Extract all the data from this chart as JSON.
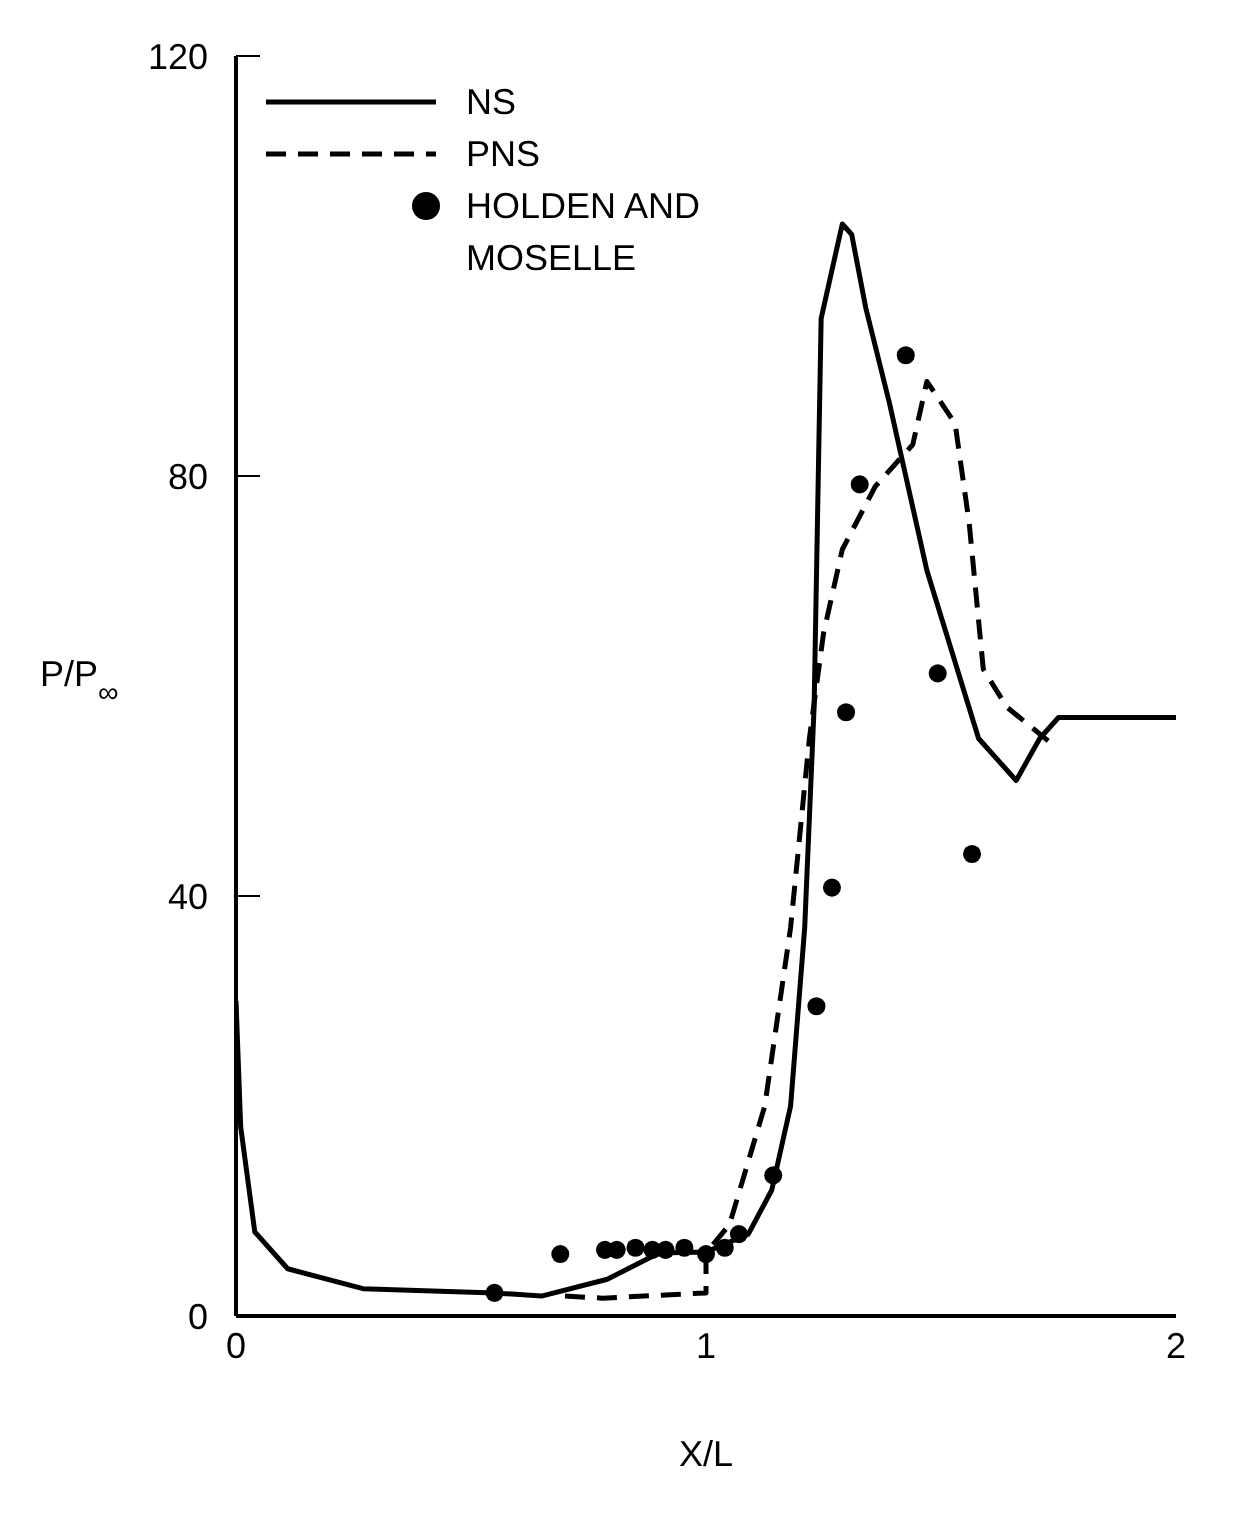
{
  "chart_data": {
    "type": "line",
    "xlabel": "X/L",
    "ylabel": "P/P$_{∞}$",
    "xlim": [
      0,
      2
    ],
    "ylim": [
      0,
      120
    ],
    "xticks": [
      0,
      1,
      2
    ],
    "yticks": [
      0,
      40,
      80,
      120
    ],
    "grid": false,
    "legend": "top left",
    "series": [
      {
        "name": "NS",
        "type": "line",
        "color": "#000000",
        "line_style": "solid",
        "marker": "none",
        "x": [
          0,
          0.01,
          0.04,
          0.11,
          0.27,
          0.55,
          0.65,
          0.79,
          0.9,
          1.0,
          1.09,
          1.14,
          1.18,
          1.21,
          1.23,
          1.245,
          1.29,
          1.31,
          1.34,
          1.39,
          1.47,
          1.58,
          1.66,
          1.71,
          1.75,
          2.0
        ],
        "values": [
          30,
          18,
          8,
          4.5,
          2.6,
          2.2,
          1.9,
          3.5,
          6,
          6.1,
          7.8,
          12,
          20,
          37,
          58,
          95,
          104,
          103,
          96,
          87,
          71,
          55,
          51,
          55,
          57,
          57
        ]
      },
      {
        "name": "PNS",
        "type": "line",
        "color": "#000000",
        "line_style": "dashed",
        "marker": "none",
        "x": [
          0.7,
          0.78,
          1.0,
          1.0,
          1.05,
          1.125,
          1.18,
          1.22,
          1.25,
          1.29,
          1.36,
          1.44,
          1.47,
          1.53,
          1.56,
          1.59,
          1.64,
          1.73
        ],
        "values": [
          1.9,
          1.7,
          2.2,
          6,
          8.7,
          20,
          37,
          55,
          65,
          73,
          79,
          83,
          89,
          85,
          75.5,
          61.6,
          58,
          54.7
        ]
      },
      {
        "name": "HOLDEN AND MOSELLE",
        "type": "scatter",
        "color": "#000000",
        "marker": "circle",
        "x": [
          0.55,
          0.69,
          0.785,
          0.81,
          0.85,
          0.886,
          0.914,
          0.954,
          1.0,
          1.04,
          1.07,
          1.143,
          1.235,
          1.268,
          1.298,
          1.327,
          1.425,
          1.493,
          1.566
        ],
        "values": [
          2.2,
          5.9,
          6.3,
          6.3,
          6.5,
          6.3,
          6.3,
          6.5,
          5.9,
          6.5,
          7.8,
          13.4,
          29.5,
          40.8,
          57.5,
          79.2,
          91.5,
          61.2,
          44
        ]
      }
    ]
  }
}
